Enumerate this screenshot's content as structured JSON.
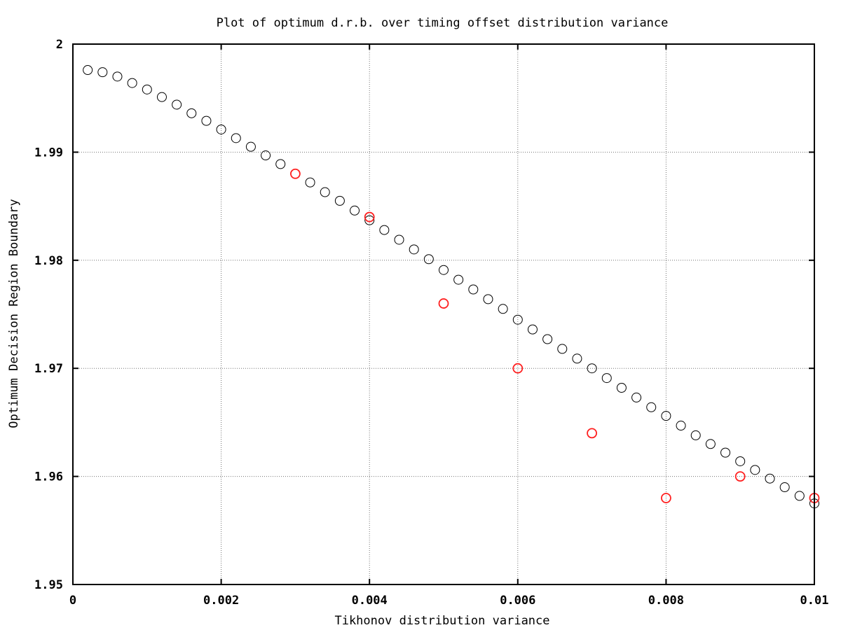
{
  "chart_data": {
    "type": "scatter",
    "title": "Plot of optimum d.r.b. over timing offset distribution variance",
    "xlabel": "Tikhonov distribution variance",
    "ylabel": "Optimum Decision Region Boundary",
    "xlim": [
      0,
      0.01
    ],
    "ylim": [
      1.95,
      2.0
    ],
    "x_ticks": [
      "0",
      "0.002",
      "0.004",
      "0.006",
      "0.008",
      "0.01"
    ],
    "y_ticks": [
      "1.95",
      "1.96",
      "1.97",
      "1.98",
      "1.99",
      "2"
    ],
    "x_tick_values": [
      0,
      0.002,
      0.004,
      0.006,
      0.008,
      0.01
    ],
    "y_tick_values": [
      1.95,
      1.96,
      1.97,
      1.98,
      1.99,
      2.0
    ],
    "grid": true,
    "series": [
      {
        "color": "#000000",
        "marker": "open-circle",
        "points": [
          [
            0.0002,
            1.9976
          ],
          [
            0.0004,
            1.9974
          ],
          [
            0.0006,
            1.997
          ],
          [
            0.0008,
            1.9964
          ],
          [
            0.001,
            1.9958
          ],
          [
            0.0012,
            1.9951
          ],
          [
            0.0014,
            1.9944
          ],
          [
            0.0016,
            1.9936
          ],
          [
            0.0018,
            1.9929
          ],
          [
            0.002,
            1.9921
          ],
          [
            0.0022,
            1.9913
          ],
          [
            0.0024,
            1.9905
          ],
          [
            0.0026,
            1.9897
          ],
          [
            0.0028,
            1.9889
          ],
          [
            0.003,
            1.988
          ],
          [
            0.0032,
            1.9872
          ],
          [
            0.0034,
            1.9863
          ],
          [
            0.0036,
            1.9855
          ],
          [
            0.0038,
            1.9846
          ],
          [
            0.004,
            1.9837
          ],
          [
            0.0042,
            1.9828
          ],
          [
            0.0044,
            1.9819
          ],
          [
            0.0046,
            1.981
          ],
          [
            0.0048,
            1.9801
          ],
          [
            0.005,
            1.9791
          ],
          [
            0.0052,
            1.9782
          ],
          [
            0.0054,
            1.9773
          ],
          [
            0.0056,
            1.9764
          ],
          [
            0.0058,
            1.9755
          ],
          [
            0.006,
            1.9745
          ],
          [
            0.0062,
            1.9736
          ],
          [
            0.0064,
            1.9727
          ],
          [
            0.0066,
            1.9718
          ],
          [
            0.0068,
            1.9709
          ],
          [
            0.007,
            1.97
          ],
          [
            0.0072,
            1.9691
          ],
          [
            0.0074,
            1.9682
          ],
          [
            0.0076,
            1.9673
          ],
          [
            0.0078,
            1.9664
          ],
          [
            0.008,
            1.9656
          ],
          [
            0.0082,
            1.9647
          ],
          [
            0.0084,
            1.9638
          ],
          [
            0.0086,
            1.963
          ],
          [
            0.0088,
            1.9622
          ],
          [
            0.009,
            1.9614
          ],
          [
            0.0092,
            1.9606
          ],
          [
            0.0094,
            1.9598
          ],
          [
            0.0096,
            1.959
          ],
          [
            0.0098,
            1.9582
          ],
          [
            0.01,
            1.9575
          ]
        ]
      },
      {
        "color": "#ff2020",
        "marker": "open-circle",
        "points": [
          [
            0.003,
            1.988
          ],
          [
            0.004,
            1.984
          ],
          [
            0.005,
            1.976
          ],
          [
            0.006,
            1.97
          ],
          [
            0.007,
            1.964
          ],
          [
            0.008,
            1.958
          ],
          [
            0.009,
            1.96
          ],
          [
            0.01,
            1.958
          ]
        ]
      }
    ]
  }
}
